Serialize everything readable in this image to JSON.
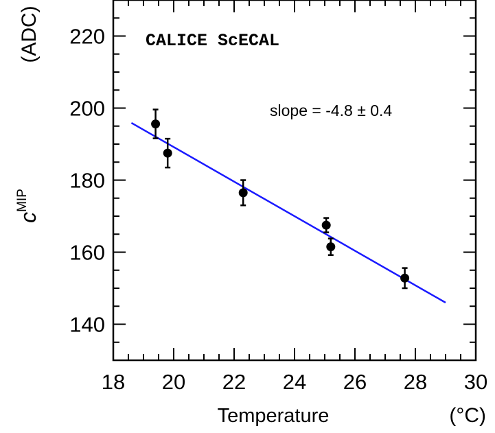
{
  "chart_data": {
    "type": "scatter",
    "title": "CALICE ScECAL",
    "xlabel": "Temperature",
    "xunit": "(°C)",
    "ylabel_main": "c",
    "ylabel_sup": "MIP",
    "yunit": "(ADC)",
    "xlim": [
      18,
      30
    ],
    "ylim": [
      130,
      230
    ],
    "xticks": [
      18,
      20,
      22,
      24,
      26,
      28,
      30
    ],
    "yticks": [
      140,
      160,
      180,
      200,
      220
    ],
    "grid": false,
    "annotation": "slope = -4.8 ± 0.4",
    "points": [
      {
        "x": 19.4,
        "y": 195.6,
        "err": 4.0
      },
      {
        "x": 19.8,
        "y": 187.5,
        "err": 4.0
      },
      {
        "x": 22.3,
        "y": 176.5,
        "err": 3.5
      },
      {
        "x": 25.05,
        "y": 167.5,
        "err": 2.0
      },
      {
        "x": 25.2,
        "y": 161.5,
        "err": 2.3
      },
      {
        "x": 27.65,
        "y": 152.8,
        "err": 2.8
      }
    ],
    "fit_line": {
      "x": [
        18.6,
        29.0
      ],
      "y": [
        195.9,
        146.0
      ],
      "color": "#1a1aff"
    }
  }
}
